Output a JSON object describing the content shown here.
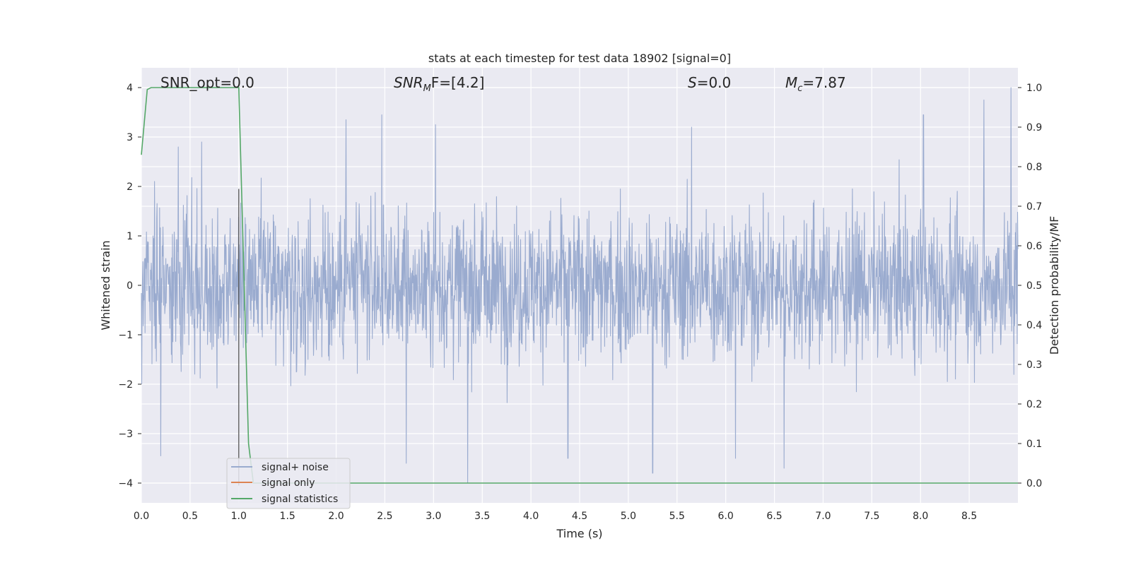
{
  "chart_data": {
    "type": "line",
    "title": "stats at each timestep for test data 18902 [signal=0]",
    "xlabel": "Time (s)",
    "ylabel": "Whitened strain",
    "ylabel_right": "Detection probability/MF",
    "xlim": [
      0.0,
      9.0
    ],
    "ylim": [
      -4.4,
      4.4
    ],
    "ylim_right": [
      -0.05,
      1.05
    ],
    "xticks": [
      "0.0",
      "0.5",
      "1.0",
      "1.5",
      "2.0",
      "2.5",
      "3.0",
      "3.5",
      "4.0",
      "4.5",
      "5.0",
      "5.5",
      "6.0",
      "6.5",
      "7.0",
      "7.5",
      "8.0",
      "8.5"
    ],
    "yticks": [
      "−4",
      "−3",
      "−2",
      "−1",
      "0",
      "1",
      "2",
      "3",
      "4"
    ],
    "yticks_right": [
      "0.0",
      "0.1",
      "0.2",
      "0.3",
      "0.4",
      "0.5",
      "0.6",
      "0.7",
      "0.8",
      "0.9",
      "1.0"
    ],
    "grid": true,
    "legend": {
      "placement": "lower-left",
      "entries": [
        "signal+ noise",
        "signal only",
        "signal statistics"
      ]
    },
    "annotations": {
      "snr_opt": "SNR_opt=0.0",
      "snr_mf_base": "SNR",
      "snr_mf_sub": "M",
      "snr_mf_rest": "F=[4.2]",
      "s_sym": "S",
      "s_val": "=0.0",
      "mc_sym": "M",
      "mc_sub": "c",
      "mc_val": "=7.87"
    },
    "vertical_marker_x": 1.0,
    "series": [
      {
        "name": "signal+ noise",
        "axis": "left",
        "color": "#9aabcf",
        "x_range": [
          0.0,
          9.0
        ],
        "envelope_peaks": [
          {
            "x": 0.38,
            "y": 2.8
          },
          {
            "x": 0.62,
            "y": 2.9
          },
          {
            "x": 2.1,
            "y": 3.35
          },
          {
            "x": 2.47,
            "y": 3.45
          },
          {
            "x": 3.02,
            "y": 3.25
          },
          {
            "x": 5.65,
            "y": 3.2
          },
          {
            "x": 8.03,
            "y": 3.45
          },
          {
            "x": 8.65,
            "y": 3.75
          },
          {
            "x": 8.93,
            "y": 4.0
          },
          {
            "x": 0.2,
            "y": -3.45
          },
          {
            "x": 2.72,
            "y": -3.6
          },
          {
            "x": 3.35,
            "y": -4.0
          },
          {
            "x": 4.38,
            "y": -3.5
          },
          {
            "x": 5.25,
            "y": -3.8
          },
          {
            "x": 6.1,
            "y": -3.5
          },
          {
            "x": 6.6,
            "y": -3.7
          }
        ]
      },
      {
        "name": "signal only",
        "axis": "left",
        "color": "#dd8452",
        "values": "flat 0"
      },
      {
        "name": "signal statistics",
        "axis": "right",
        "color": "#55a868",
        "x": [
          0.0,
          0.06,
          0.1,
          0.15,
          0.5,
          0.95,
          1.0,
          1.1,
          1.15,
          9.0
        ],
        "y": [
          0.83,
          0.995,
          1.0,
          1.0,
          1.0,
          1.0,
          1.0,
          0.1,
          0.0,
          0.0
        ]
      }
    ],
    "colors": {
      "plot_bg": "#eaeaf2",
      "grid": "#ffffff",
      "marker_line": "#555555"
    }
  }
}
